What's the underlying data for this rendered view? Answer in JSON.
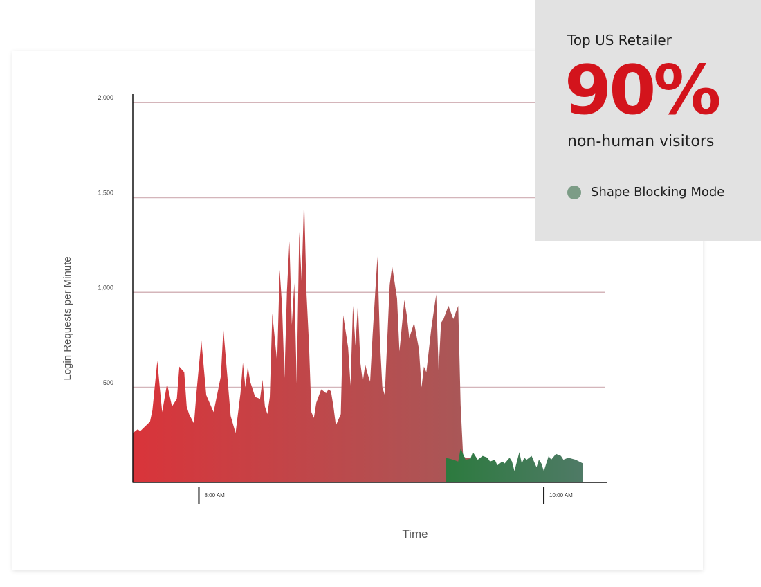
{
  "chart_data": {
    "type": "area",
    "ylabel": "Login Requests per Minute",
    "xlabel": "Time",
    "ylim": [
      0,
      2000
    ],
    "y_ticks": [
      500,
      1000,
      1500,
      2000
    ],
    "y_tick_labels": [
      "500",
      "1,000",
      "1,500",
      "2,000"
    ],
    "x_range": [
      0,
      194
    ],
    "x_ticks": [
      {
        "x": 27,
        "label": "8:00 AM"
      },
      {
        "x": 168,
        "label": "10:00 AM"
      }
    ],
    "grid": true,
    "series": [
      {
        "colors": [
          "#d9343a",
          "#a85858"
        ],
        "points": [
          [
            0,
            260
          ],
          [
            2,
            280
          ],
          [
            3,
            270
          ],
          [
            7,
            320
          ],
          [
            8,
            380
          ],
          [
            10,
            640
          ],
          [
            11,
            500
          ],
          [
            12,
            370
          ],
          [
            14,
            520
          ],
          [
            15,
            460
          ],
          [
            16,
            400
          ],
          [
            18,
            440
          ],
          [
            19,
            610
          ],
          [
            21,
            580
          ],
          [
            22,
            400
          ],
          [
            23,
            360
          ],
          [
            25,
            310
          ],
          [
            26,
            470
          ],
          [
            28,
            750
          ],
          [
            30,
            460
          ],
          [
            33,
            370
          ],
          [
            36,
            560
          ],
          [
            37,
            810
          ],
          [
            40,
            350
          ],
          [
            42,
            260
          ],
          [
            44,
            470
          ],
          [
            45,
            630
          ],
          [
            46,
            500
          ],
          [
            47,
            610
          ],
          [
            48,
            530
          ],
          [
            50,
            450
          ],
          [
            52,
            440
          ],
          [
            53,
            540
          ],
          [
            54,
            400
          ],
          [
            55,
            360
          ],
          [
            56,
            450
          ],
          [
            57,
            890
          ],
          [
            59,
            630
          ],
          [
            60,
            1120
          ],
          [
            61,
            930
          ],
          [
            62,
            550
          ],
          [
            63,
            1010
          ],
          [
            64,
            1270
          ],
          [
            65,
            830
          ],
          [
            66,
            1050
          ],
          [
            67,
            520
          ],
          [
            68,
            1320
          ],
          [
            69,
            1060
          ],
          [
            70,
            1500
          ],
          [
            71,
            990
          ],
          [
            72,
            730
          ],
          [
            73,
            370
          ],
          [
            74,
            340
          ],
          [
            75,
            420
          ],
          [
            77,
            490
          ],
          [
            79,
            470
          ],
          [
            80,
            490
          ],
          [
            81,
            480
          ],
          [
            82,
            400
          ],
          [
            83,
            300
          ],
          [
            85,
            360
          ],
          [
            86,
            880
          ],
          [
            88,
            710
          ],
          [
            89,
            510
          ],
          [
            90,
            930
          ],
          [
            91,
            720
          ],
          [
            92,
            940
          ],
          [
            93,
            630
          ],
          [
            94,
            530
          ],
          [
            95,
            620
          ],
          [
            96,
            570
          ],
          [
            97,
            530
          ],
          [
            98,
            770
          ],
          [
            100,
            1190
          ],
          [
            101,
            750
          ],
          [
            102,
            500
          ],
          [
            103,
            460
          ],
          [
            105,
            1040
          ],
          [
            106,
            1140
          ],
          [
            108,
            970
          ],
          [
            109,
            690
          ],
          [
            111,
            960
          ],
          [
            112,
            880
          ],
          [
            113,
            760
          ],
          [
            115,
            840
          ],
          [
            117,
            700
          ],
          [
            118,
            500
          ],
          [
            119,
            610
          ],
          [
            120,
            580
          ],
          [
            122,
            810
          ],
          [
            124,
            990
          ],
          [
            125,
            590
          ],
          [
            126,
            840
          ],
          [
            127,
            860
          ],
          [
            129,
            930
          ],
          [
            131,
            860
          ],
          [
            133,
            930
          ],
          [
            134,
            410
          ],
          [
            135,
            140
          ],
          [
            136,
            130
          ],
          [
            137,
            130
          ],
          [
            138,
            130
          ]
        ]
      },
      {
        "colors": [
          "#2c7a3e",
          "#4f7a66"
        ],
        "points": [
          [
            128,
            130
          ],
          [
            131,
            120
          ],
          [
            133,
            110
          ],
          [
            134,
            180
          ],
          [
            136,
            120
          ],
          [
            138,
            125
          ],
          [
            139,
            160
          ],
          [
            141,
            120
          ],
          [
            143,
            140
          ],
          [
            145,
            130
          ],
          [
            146,
            110
          ],
          [
            148,
            120
          ],
          [
            149,
            90
          ],
          [
            151,
            110
          ],
          [
            152,
            100
          ],
          [
            154,
            130
          ],
          [
            155,
            110
          ],
          [
            156,
            60
          ],
          [
            158,
            160
          ],
          [
            159,
            100
          ],
          [
            160,
            130
          ],
          [
            161,
            120
          ],
          [
            163,
            140
          ],
          [
            165,
            80
          ],
          [
            166,
            120
          ],
          [
            167,
            100
          ],
          [
            168,
            60
          ],
          [
            170,
            140
          ],
          [
            171,
            120
          ],
          [
            173,
            150
          ],
          [
            175,
            140
          ],
          [
            176,
            120
          ],
          [
            178,
            130
          ],
          [
            181,
            120
          ],
          [
            184,
            100
          ]
        ]
      }
    ]
  },
  "info": {
    "subtitle": "Top US Retailer",
    "big_value": "90%",
    "description": "non-human visitors",
    "legend_label": "Shape Blocking Mode",
    "accent_color": "#d3141c",
    "legend_color": "#7c9c86"
  }
}
